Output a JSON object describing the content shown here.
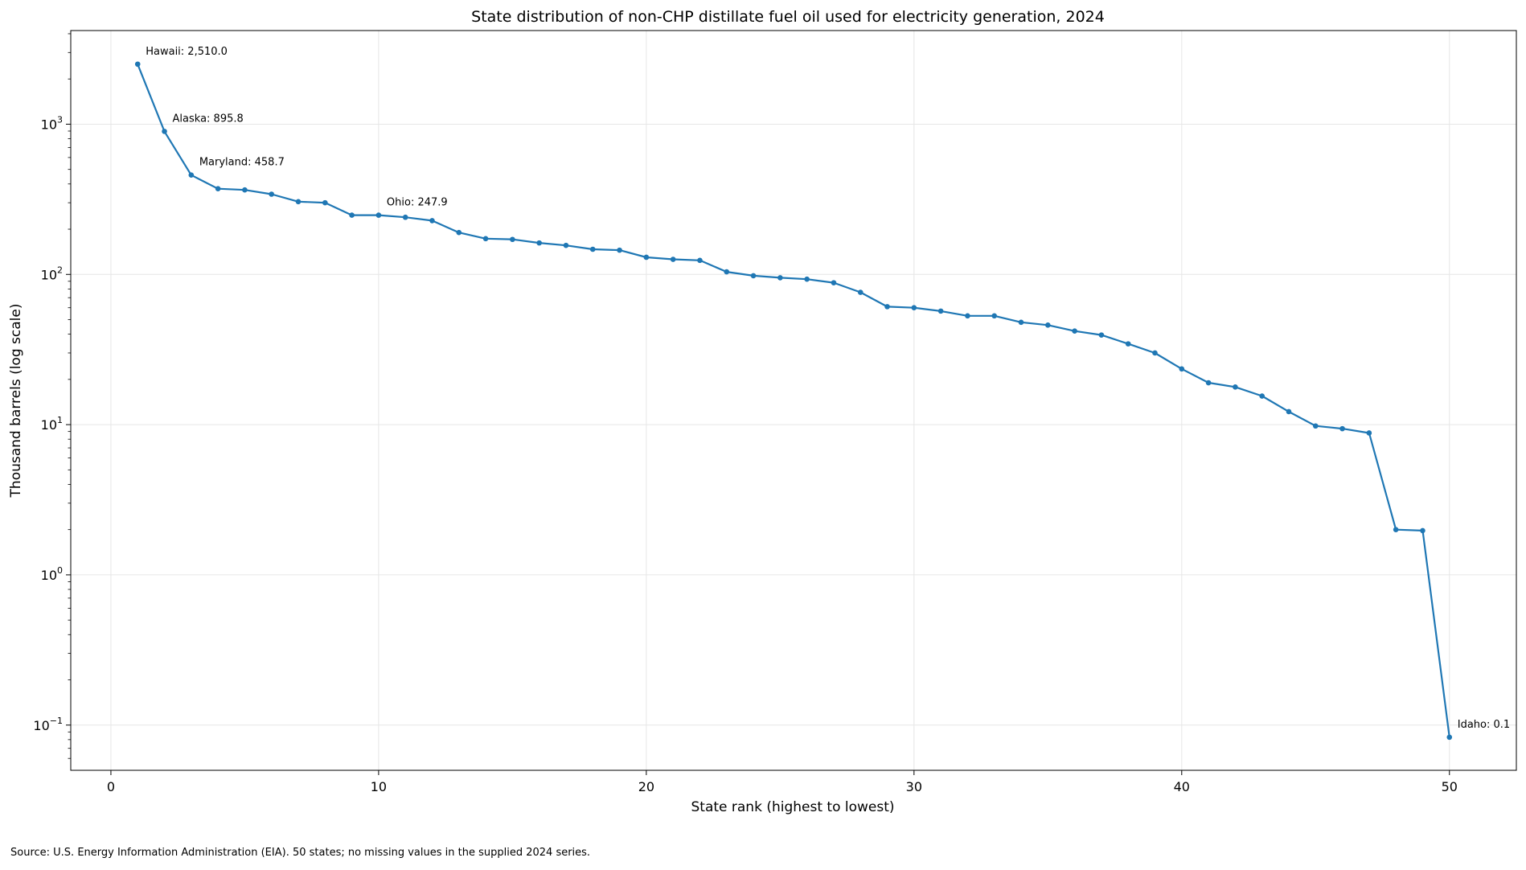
{
  "chart_data": {
    "type": "line",
    "title": "State distribution of non-CHP distillate fuel oil used for electricity generation, 2024",
    "xlabel": "State rank (highest to lowest)",
    "ylabel": "Thousand barrels (log scale)",
    "yscale": "log",
    "xlim": [
      -1.5,
      52.5
    ],
    "ylim": [
      0.05,
      4200
    ],
    "grid": true,
    "line_color": "#1f77b4",
    "x_ticks": [
      0,
      10,
      20,
      30,
      40,
      50
    ],
    "y_ticks": [
      {
        "value": 0.1,
        "base": "10",
        "exp": "−1"
      },
      {
        "value": 1,
        "base": "10",
        "exp": "0"
      },
      {
        "value": 10,
        "base": "10",
        "exp": "1"
      },
      {
        "value": 100,
        "base": "10",
        "exp": "2"
      },
      {
        "value": 1000,
        "base": "10",
        "exp": "3"
      }
    ],
    "series": [
      {
        "x": [
          1,
          2,
          3,
          4,
          5,
          6,
          7,
          8,
          9,
          10,
          11,
          12,
          13,
          14,
          15,
          16,
          17,
          18,
          19,
          20,
          21,
          22,
          23,
          24,
          25,
          26,
          27,
          28,
          29,
          30,
          31,
          32,
          33,
          34,
          35,
          36,
          37,
          38,
          39,
          40,
          41,
          42,
          43,
          44,
          45,
          46,
          47,
          48,
          49,
          50
        ],
        "values": [
          2510.0,
          895.8,
          458.7,
          372,
          365,
          342,
          305,
          300,
          248,
          247.9,
          240,
          228,
          190,
          173,
          171,
          162,
          156,
          147,
          145,
          130,
          126,
          124,
          104,
          98,
          95,
          93,
          88,
          76,
          61,
          60,
          57,
          53,
          53,
          48,
          46,
          42,
          39.5,
          34.5,
          30,
          23.5,
          19,
          17.8,
          15.5,
          12.2,
          9.8,
          9.4,
          8.8,
          2.0,
          1.97,
          0.083
        ]
      }
    ],
    "annotations": [
      {
        "x": 1,
        "y": 2510.0,
        "text": "Hawaii: 2,510.0"
      },
      {
        "x": 2,
        "y": 895.8,
        "text": "Alaska: 895.8"
      },
      {
        "x": 3,
        "y": 458.7,
        "text": "Maryland: 458.7"
      },
      {
        "x": 10,
        "y": 247.9,
        "text": "Ohio: 247.9"
      },
      {
        "x": 50,
        "y": 0.083,
        "text": "Idaho: 0.1"
      }
    ]
  },
  "footer": {
    "source": "Source: U.S. Energy Information Administration (EIA). 50 states; no missing values in the supplied 2024 series."
  }
}
